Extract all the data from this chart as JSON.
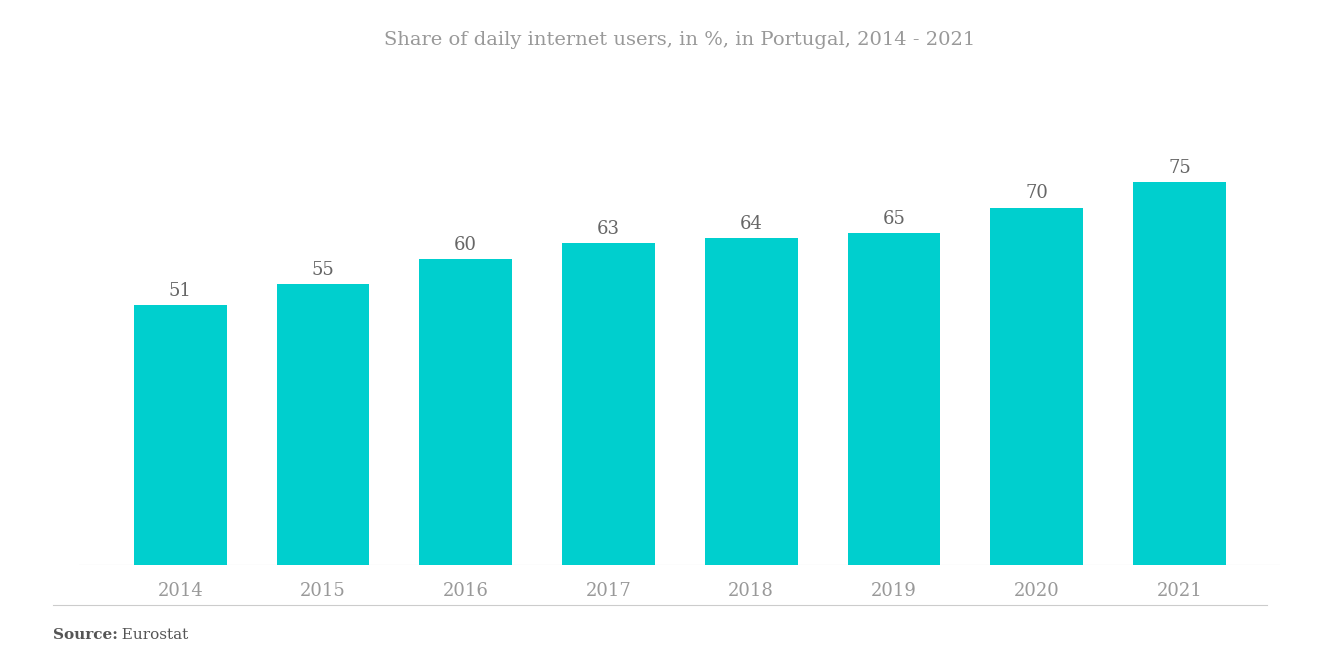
{
  "title": "Share of daily internet users, in %, in Portugal, 2014 - 2021",
  "categories": [
    "2014",
    "2015",
    "2016",
    "2017",
    "2018",
    "2019",
    "2020",
    "2021"
  ],
  "values": [
    51,
    55,
    60,
    63,
    64,
    65,
    70,
    75
  ],
  "bar_color": "#00CFCE",
  "background_color": "#ffffff",
  "title_color": "#999999",
  "label_color": "#666666",
  "tick_color": "#999999",
  "source_bold": "Source:",
  "source_normal": "  Eurostat",
  "title_fontsize": 14,
  "label_fontsize": 13,
  "tick_fontsize": 13,
  "source_fontsize": 11,
  "ylim": [
    0,
    95
  ],
  "bar_width": 0.65
}
